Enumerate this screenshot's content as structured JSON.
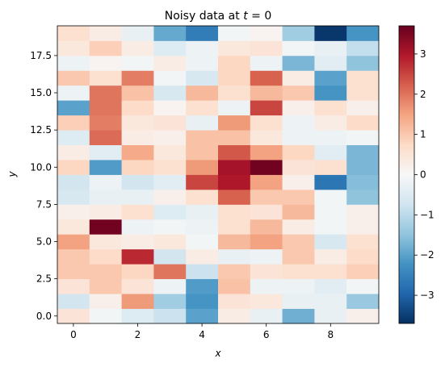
{
  "chart_data": {
    "type": "heatmap",
    "title": "Noisy data at t = 0",
    "title_prefix": "Noisy data at ",
    "title_var": "t",
    "title_suffix": " = 0",
    "xlabel": "x",
    "ylabel": "y",
    "colormap": "RdBu_r",
    "colorbar_range": [
      -3.7,
      3.7
    ],
    "colorbar_ticks": [
      -3,
      -2,
      -1,
      0,
      1,
      2,
      3
    ],
    "colorbar_tick_labels": [
      "−3",
      "−2",
      "−1",
      "0",
      "1",
      "2",
      "3"
    ],
    "x_ticks": [
      0,
      2,
      4,
      6,
      8
    ],
    "x_tick_labels": [
      "0",
      "2",
      "4",
      "6",
      "8"
    ],
    "y_ticks": [
      0.0,
      2.5,
      5.0,
      7.5,
      10.0,
      12.5,
      15.0,
      17.5
    ],
    "y_tick_labels": [
      "0.0",
      "2.5",
      "5.0",
      "7.5",
      "10.0",
      "12.5",
      "15.0",
      "17.5"
    ],
    "xlim": [
      -0.5,
      9.5
    ],
    "ylim": [
      -0.5,
      19.5
    ],
    "x": [
      0,
      1,
      2,
      3,
      4,
      5,
      6,
      7,
      8,
      9
    ],
    "y": [
      0,
      1,
      2,
      3,
      4,
      5,
      6,
      7,
      8,
      9,
      10,
      11,
      12,
      13,
      14,
      15,
      16,
      17,
      18,
      19
    ],
    "values": [
      [
        0.5,
        -0.1,
        -0.5,
        -0.8,
        -2.0,
        0.3,
        -0.3,
        -1.8,
        -0.3,
        0.2
      ],
      [
        -0.7,
        0.2,
        1.6,
        -1.3,
        -2.2,
        0.5,
        0.4,
        -0.3,
        -0.3,
        -1.4
      ],
      [
        0.5,
        1.0,
        0.5,
        -0.2,
        -2.1,
        1.1,
        -0.2,
        -0.2,
        -0.4,
        -0.1
      ],
      [
        1.0,
        1.0,
        0.8,
        2.0,
        -0.8,
        1.0,
        0.5,
        0.6,
        0.6,
        0.9
      ],
      [
        1.0,
        0.7,
        2.8,
        -0.7,
        0.3,
        -0.3,
        -0.2,
        1.0,
        0.3,
        0.7
      ],
      [
        1.5,
        0.4,
        0.3,
        0.4,
        -0.1,
        1.2,
        1.5,
        1.0,
        -0.6,
        0.6
      ],
      [
        0.4,
        3.6,
        -0.2,
        -0.1,
        -0.2,
        0.6,
        1.2,
        0.3,
        -0.1,
        0.2
      ],
      [
        0.2,
        0.3,
        0.6,
        -0.5,
        -0.3,
        0.6,
        0.5,
        1.2,
        -0.1,
        0.2
      ],
      [
        -0.6,
        -0.3,
        -0.3,
        0.2,
        0.6,
        2.2,
        1.0,
        1.0,
        -0.1,
        -1.5
      ],
      [
        -0.7,
        -0.2,
        -0.7,
        -0.4,
        2.5,
        3.0,
        1.5,
        0.2,
        -2.7,
        -1.6
      ],
      [
        0.8,
        -2.1,
        0.8,
        0.6,
        1.6,
        3.1,
        3.6,
        0.5,
        0.6,
        -1.7
      ],
      [
        0.3,
        -0.4,
        1.4,
        0.4,
        1.1,
        2.3,
        1.5,
        0.8,
        -0.4,
        -1.7
      ],
      [
        -0.5,
        2.1,
        0.3,
        0.2,
        1.1,
        1.1,
        0.4,
        -0.2,
        -0.2,
        -0.1
      ],
      [
        0.9,
        1.9,
        0.4,
        0.5,
        -0.3,
        1.6,
        0.6,
        -0.2,
        0.3,
        0.7
      ],
      [
        -2.0,
        2.0,
        0.7,
        0.1,
        0.6,
        -0.2,
        2.5,
        0.2,
        0.6,
        0.2
      ],
      [
        -0.2,
        2.0,
        1.1,
        -0.6,
        1.2,
        0.6,
        1.2,
        1.0,
        -2.2,
        0.6
      ],
      [
        1.0,
        0.6,
        1.9,
        -0.1,
        -0.6,
        0.8,
        2.2,
        0.3,
        -2.0,
        0.6
      ],
      [
        -0.2,
        0.1,
        -0.1,
        0.3,
        -0.2,
        0.8,
        -0.2,
        -1.7,
        -0.4,
        -1.5
      ],
      [
        0.4,
        0.9,
        0.3,
        -0.5,
        -0.2,
        0.4,
        0.5,
        -0.1,
        -0.3,
        -0.9
      ],
      [
        0.6,
        0.3,
        -0.3,
        -1.9,
        -2.6,
        -0.1,
        0.1,
        -1.3,
        -3.6,
        -2.2
      ]
    ]
  }
}
